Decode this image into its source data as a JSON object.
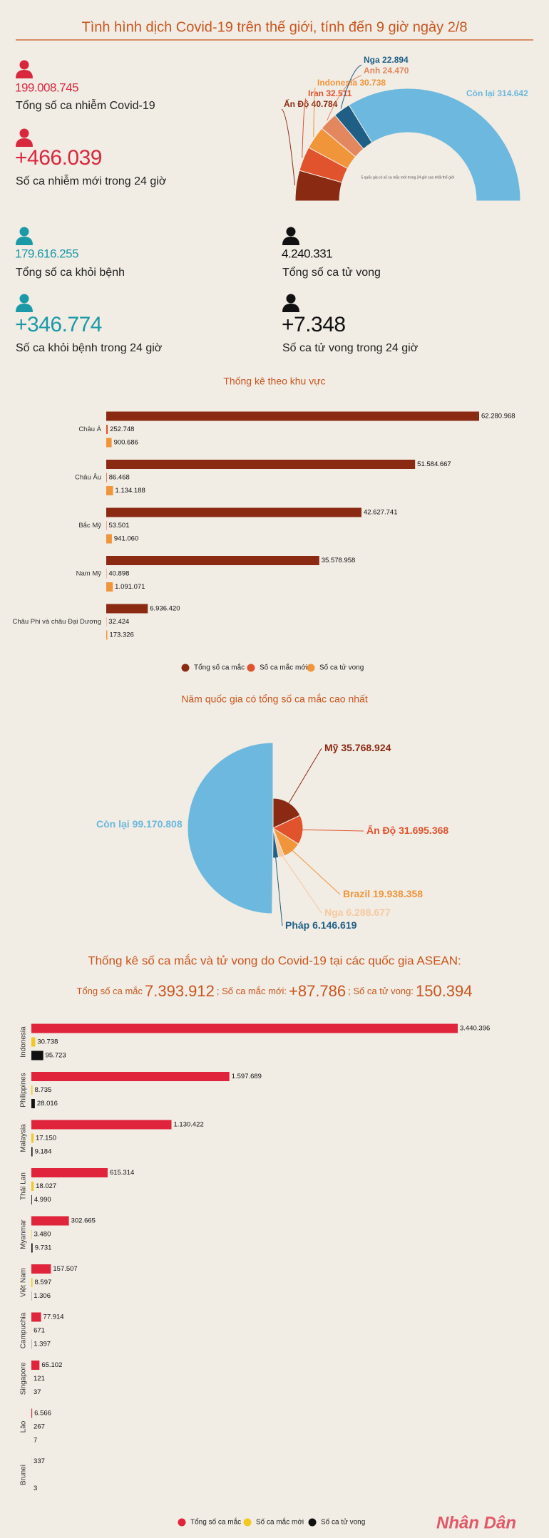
{
  "title": "Tình hình dịch Covid-19 trên thế giới, tính đến 9 giờ ngày 2/8",
  "stats": [
    {
      "value": "199.008.745",
      "label": "Tổng số ca nhiễm Covid-19",
      "color": "#d9283e"
    },
    {
      "value": "+466.039",
      "label": "Số ca nhiễm mới trong 24 giờ",
      "color": "#d9283e"
    },
    {
      "value": "179.616.255",
      "label": "Tổng số ca khỏi bệnh",
      "color": "#1a9aa8"
    },
    {
      "value": "4.240.331",
      "label": "Tổng số ca tử vong",
      "color": "#111111"
    },
    {
      "value": "+346.774",
      "label": "Số ca khỏi bệnh trong 24 giờ",
      "color": "#1a9aa8"
    },
    {
      "value": "+7.348",
      "label": "Số ca tử vong trong 24 giờ",
      "color": "#111111"
    }
  ],
  "chart_data": [
    {
      "type": "half-donut",
      "note": "5 quốc gia có số ca mắc mới trong 24 giờ cao nhất thế giới",
      "categories": [
        "Ấn Độ",
        "Iran",
        "Indonesia",
        "Anh",
        "Nga",
        "Còn lại"
      ],
      "values": [
        40784,
        32511,
        30738,
        24470,
        22894,
        314642
      ],
      "value_labels": [
        "40.784",
        "32.511",
        "30.738",
        "24.470",
        "22.894",
        "314.642"
      ],
      "colors": [
        "#8b2a12",
        "#e0532d",
        "#f0953a",
        "#e2875e",
        "#1f5f85",
        "#6cb8de"
      ]
    },
    {
      "type": "hbar",
      "title": "Thống kê theo khu vực",
      "categories": [
        "Châu Á",
        "Châu Âu",
        "Bắc Mỹ",
        "Nam Mỹ",
        "Châu Phi và châu Đại Dương"
      ],
      "series": [
        {
          "name": "Tổng số ca mắc",
          "color": "#8b2a12",
          "values": [
            62280968,
            51584667,
            42627741,
            35578958,
            6936420
          ],
          "value_labels": [
            "62.280.968",
            "51.584.667",
            "42.627.741",
            "35.578.958",
            "6.936.420"
          ]
        },
        {
          "name": "Số ca mắc mới",
          "color": "#e0532d",
          "values": [
            252748,
            86468,
            53501,
            40898,
            32424
          ],
          "value_labels": [
            "252.748",
            "86.468",
            "53.501",
            "40.898",
            "32.424"
          ]
        },
        {
          "name": "Số ca tử vong",
          "color": "#f0953a",
          "values": [
            900686,
            1134188,
            941060,
            1091071,
            173326
          ],
          "value_labels": [
            "900.686",
            "1.134.188",
            "941.060",
            "1.091.071",
            "173.326"
          ]
        }
      ]
    },
    {
      "type": "pie",
      "title": "Năm quốc gia có tổng số ca mắc cao nhất",
      "categories": [
        "Mỹ",
        "Ấn Độ",
        "Brazil",
        "Nga",
        "Pháp",
        "Còn lại"
      ],
      "values": [
        35768924,
        31695368,
        19938358,
        6288677,
        6146619,
        99170808
      ],
      "value_labels": [
        "35.768.924",
        "31.695.368",
        "19.938.358",
        "6.288.677",
        "6.146.619",
        "99.170.808"
      ],
      "colors": [
        "#8b2a12",
        "#e0532d",
        "#f0953a",
        "#f6c9a0",
        "#1f5f85",
        "#6cb8de"
      ]
    },
    {
      "type": "hbar",
      "title": "Thống kê số ca mắc và tử vong do Covid-19 tại các quốc gia ASEAN:",
      "summary": [
        "Tổng số ca mắc",
        "7.393.912",
        "; Số ca mắc mới:",
        "+87.786",
        "; Số ca tử vong:",
        "150.394"
      ],
      "categories": [
        "Indonesia",
        "Philippines",
        "Malaysia",
        "Thái Lan",
        "Myanmar",
        "Việt Nam",
        "Campuchia",
        "Singapore",
        "Lào",
        "Brunei"
      ],
      "series": [
        {
          "name": "Tổng số ca mắc",
          "color": "#e0243c",
          "values": [
            3440396,
            1597689,
            1130422,
            615314,
            302665,
            157507,
            77914,
            65102,
            6566,
            337
          ],
          "value_labels": [
            "3.440.396",
            "1.597.689",
            "1.130.422",
            "615.314",
            "302.665",
            "157.507",
            "77.914",
            "65.102",
            "6.566",
            "337"
          ]
        },
        {
          "name": "Số ca mắc mới",
          "color": "#f2c81e",
          "values": [
            30738,
            8735,
            17150,
            18027,
            3480,
            8597,
            671,
            121,
            267,
            null
          ],
          "value_labels": [
            "30.738",
            "8.735",
            "17.150",
            "18.027",
            "3.480",
            "8.597",
            "671",
            "121",
            "267",
            null
          ]
        },
        {
          "name": "Số ca tử vong",
          "color": "#111111",
          "values": [
            95723,
            28016,
            9184,
            4990,
            9731,
            1306,
            1397,
            37,
            7,
            3
          ],
          "value_labels": [
            "95.723",
            "28.016",
            "9.184",
            "4.990",
            "9.731",
            "1.306",
            "1.397",
            "37",
            "7",
            "3"
          ]
        }
      ]
    }
  ],
  "footer": {
    "logo": "Nhân Dân"
  }
}
